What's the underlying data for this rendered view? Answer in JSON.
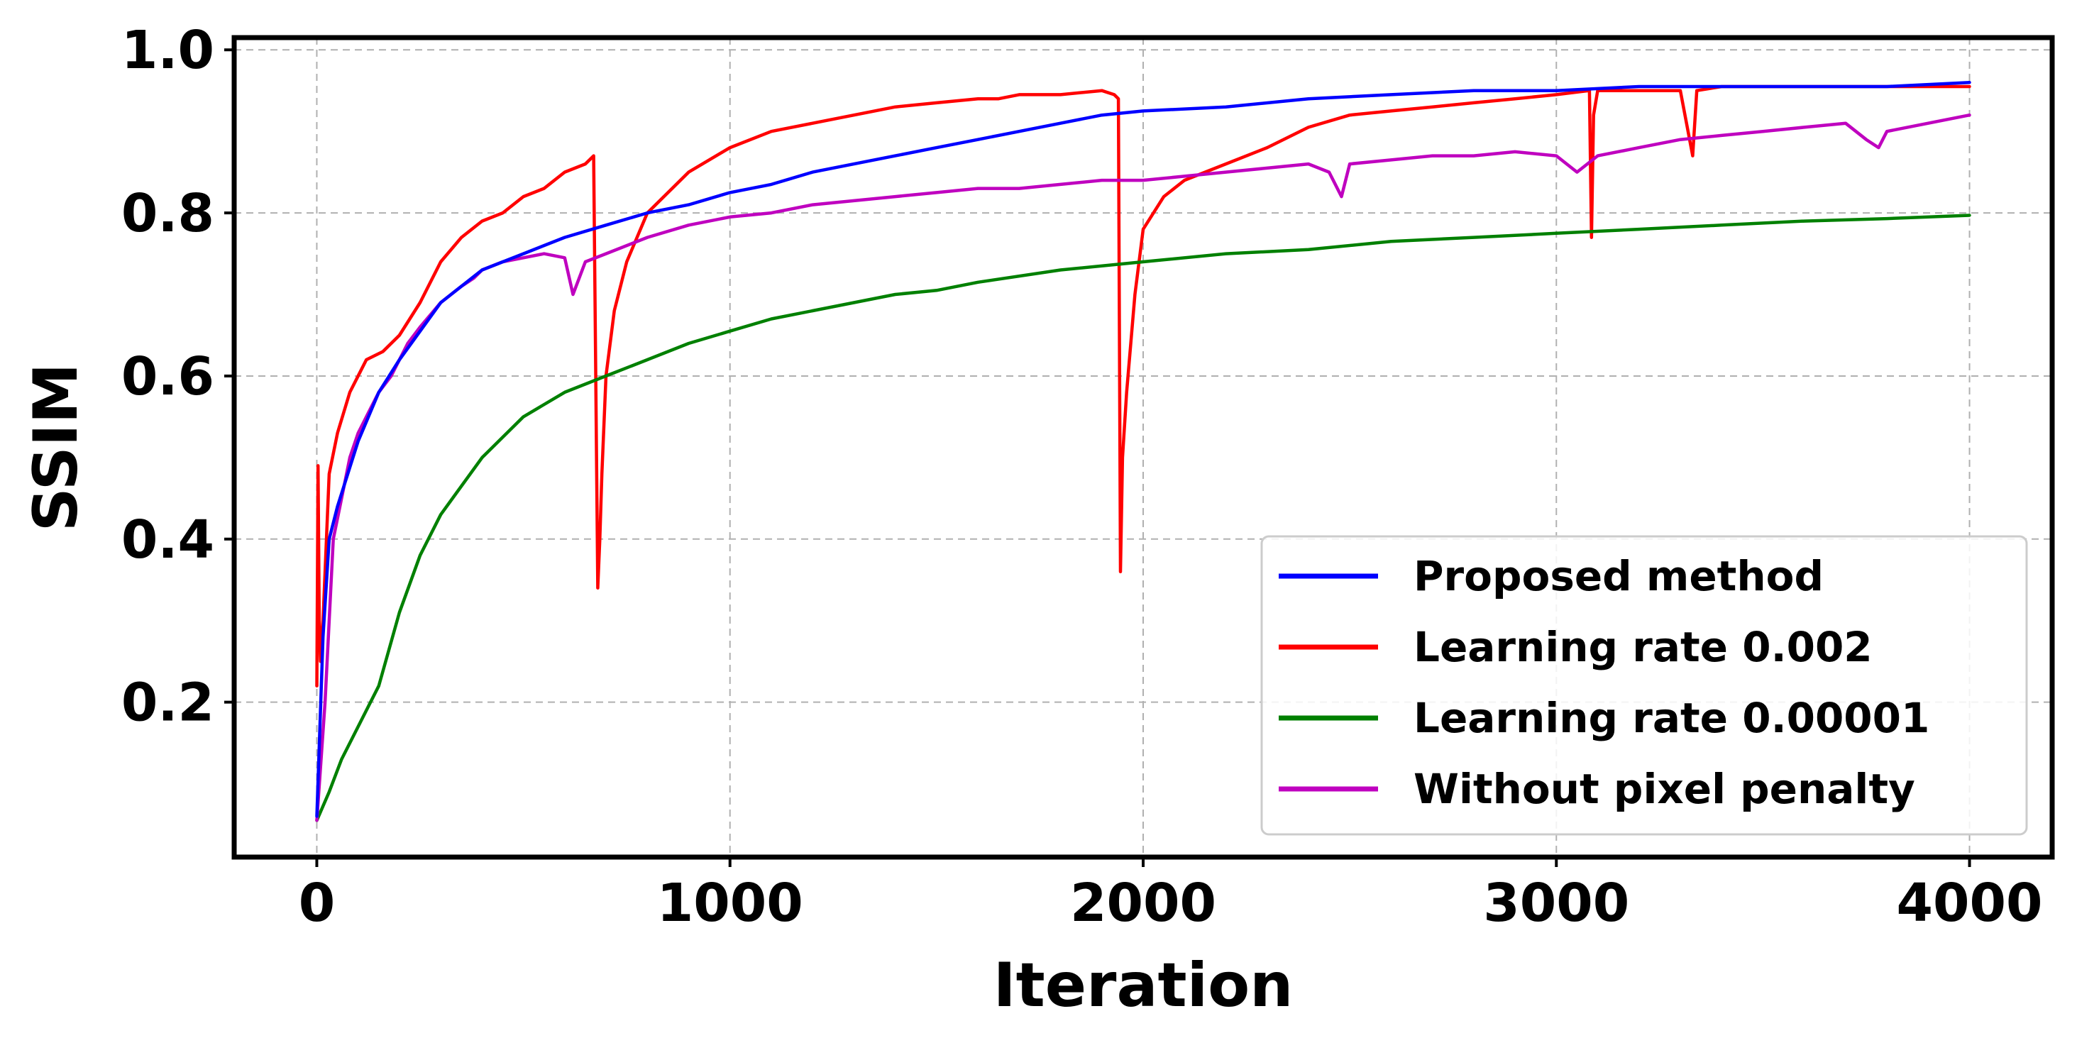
{
  "chart_data": {
    "type": "line",
    "title": "",
    "xlabel": "Iteration",
    "ylabel": "SSIM",
    "xlim": [
      -200,
      4200
    ],
    "ylim": [
      0.01,
      1.015
    ],
    "xticks": [
      0,
      1000,
      2000,
      3000,
      4000
    ],
    "xtick_labels": [
      "0",
      "1000",
      "2000",
      "3000",
      "4000"
    ],
    "yticks": [
      0.2,
      0.4,
      0.6,
      0.8,
      1.0
    ],
    "ytick_labels": [
      "0.2",
      "0.4",
      "0.6",
      "0.8",
      "1.0"
    ],
    "grid": true,
    "legend_position": "lower-right",
    "series": [
      {
        "name": "Proposed method",
        "color": "#0000ff",
        "x": [
          0,
          15,
          30,
          50,
          75,
          100,
          150,
          200,
          300,
          400,
          500,
          600,
          700,
          800,
          900,
          1000,
          1100,
          1200,
          1300,
          1400,
          1500,
          1600,
          1700,
          1800,
          1900,
          2000,
          2200,
          2400,
          2600,
          2800,
          3000,
          3200,
          3400,
          3600,
          3800,
          4000
        ],
        "y": [
          0.06,
          0.28,
          0.4,
          0.44,
          0.48,
          0.52,
          0.58,
          0.62,
          0.69,
          0.73,
          0.75,
          0.77,
          0.785,
          0.8,
          0.81,
          0.825,
          0.835,
          0.85,
          0.86,
          0.87,
          0.88,
          0.89,
          0.9,
          0.91,
          0.92,
          0.925,
          0.93,
          0.94,
          0.945,
          0.95,
          0.95,
          0.955,
          0.955,
          0.955,
          0.955,
          0.96
        ]
      },
      {
        "name": "Learning rate 0.002",
        "color": "#ff0000",
        "x": [
          0,
          3,
          6,
          9,
          15,
          30,
          50,
          80,
          120,
          160,
          200,
          250,
          300,
          350,
          400,
          450,
          500,
          550,
          600,
          650,
          670,
          680,
          685,
          690,
          700,
          720,
          750,
          800,
          900,
          1000,
          1100,
          1200,
          1300,
          1400,
          1500,
          1600,
          1650,
          1700,
          1800,
          1900,
          1930,
          1940,
          1945,
          1950,
          1960,
          1980,
          2000,
          2050,
          2100,
          2200,
          2300,
          2400,
          2500,
          2600,
          2700,
          2800,
          2900,
          3000,
          3080,
          3085,
          3090,
          3100,
          3200,
          3300,
          3330,
          3340,
          3400,
          3500,
          3600,
          3700,
          3800,
          3900,
          4000
        ],
        "y": [
          0.22,
          0.49,
          0.3,
          0.25,
          0.3,
          0.48,
          0.53,
          0.58,
          0.62,
          0.63,
          0.65,
          0.69,
          0.74,
          0.77,
          0.79,
          0.8,
          0.82,
          0.83,
          0.85,
          0.86,
          0.87,
          0.34,
          0.4,
          0.48,
          0.6,
          0.68,
          0.74,
          0.8,
          0.85,
          0.88,
          0.9,
          0.91,
          0.92,
          0.93,
          0.935,
          0.94,
          0.94,
          0.945,
          0.945,
          0.95,
          0.945,
          0.94,
          0.36,
          0.5,
          0.58,
          0.7,
          0.78,
          0.82,
          0.84,
          0.86,
          0.88,
          0.905,
          0.92,
          0.925,
          0.93,
          0.935,
          0.94,
          0.945,
          0.95,
          0.77,
          0.92,
          0.95,
          0.95,
          0.95,
          0.87,
          0.95,
          0.955,
          0.955,
          0.955,
          0.955,
          0.955,
          0.955,
          0.955
        ]
      },
      {
        "name": "Learning rate 0.00001",
        "color": "#008000",
        "x": [
          0,
          30,
          60,
          100,
          150,
          200,
          250,
          300,
          400,
          500,
          600,
          700,
          800,
          900,
          1000,
          1100,
          1200,
          1300,
          1400,
          1500,
          1600,
          1800,
          2000,
          2200,
          2400,
          2600,
          2800,
          3000,
          3200,
          3400,
          3600,
          3800,
          4000
        ],
        "y": [
          0.055,
          0.09,
          0.13,
          0.17,
          0.22,
          0.31,
          0.38,
          0.43,
          0.5,
          0.55,
          0.58,
          0.6,
          0.62,
          0.64,
          0.655,
          0.67,
          0.68,
          0.69,
          0.7,
          0.705,
          0.715,
          0.73,
          0.74,
          0.75,
          0.755,
          0.765,
          0.77,
          0.775,
          0.78,
          0.785,
          0.79,
          0.793,
          0.797
        ]
      },
      {
        "name": "Without pixel penalty",
        "color": "#bf00bf",
        "x": [
          0,
          20,
          40,
          60,
          80,
          100,
          130,
          150,
          180,
          200,
          220,
          250,
          300,
          350,
          380,
          400,
          450,
          500,
          550,
          600,
          620,
          650,
          700,
          800,
          900,
          1000,
          1100,
          1200,
          1300,
          1400,
          1500,
          1600,
          1700,
          1800,
          1900,
          2000,
          2100,
          2200,
          2300,
          2400,
          2450,
          2480,
          2500,
          2600,
          2700,
          2800,
          2900,
          3000,
          3050,
          3100,
          3200,
          3300,
          3400,
          3500,
          3600,
          3700,
          3750,
          3780,
          3800,
          3900,
          4000
        ],
        "y": [
          0.055,
          0.2,
          0.4,
          0.45,
          0.5,
          0.53,
          0.56,
          0.58,
          0.6,
          0.62,
          0.64,
          0.66,
          0.69,
          0.71,
          0.72,
          0.73,
          0.74,
          0.745,
          0.75,
          0.745,
          0.7,
          0.74,
          0.75,
          0.77,
          0.785,
          0.795,
          0.8,
          0.81,
          0.815,
          0.82,
          0.825,
          0.83,
          0.83,
          0.835,
          0.84,
          0.84,
          0.845,
          0.85,
          0.855,
          0.86,
          0.85,
          0.82,
          0.86,
          0.865,
          0.87,
          0.87,
          0.875,
          0.87,
          0.85,
          0.87,
          0.88,
          0.89,
          0.895,
          0.9,
          0.905,
          0.91,
          0.89,
          0.88,
          0.9,
          0.91,
          0.92
        ]
      }
    ]
  }
}
